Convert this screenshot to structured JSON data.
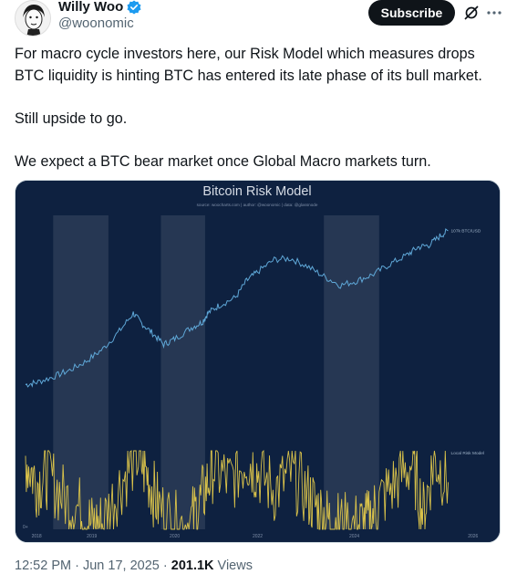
{
  "author": {
    "display_name": "Willy Woo",
    "handle": "@woonomic",
    "verified": true
  },
  "actions": {
    "subscribe_label": "Subscribe",
    "grok_icon": "grok-slash-icon",
    "more_icon": "more-dots-icon"
  },
  "tweet": {
    "paragraphs": [
      "For macro cycle investors here, our Risk Model which measures drops BTC liquidity is hinting BTC has entered its late phase of its bull market.",
      "Still upside to go.",
      "We expect a BTC bear market once Global Macro markets turn."
    ]
  },
  "chart_data": {
    "type": "line",
    "title": "Bitcoin Risk Model",
    "subtitle": "source: woocharts.com | author: @woonomic | data: @glassnode",
    "x_ticks": [
      "2018",
      "2019",
      "2020",
      "2022",
      "2024",
      "2026"
    ],
    "x_range": [
      2017.75,
      2026.25
    ],
    "shaded_periods": [
      [
        2018.3,
        2019.3
      ],
      [
        2020.25,
        2021.05
      ],
      [
        2023.2,
        2024.2
      ]
    ],
    "series": [
      {
        "name": "107k BTC/USD",
        "color": "#5fa8d8",
        "x": [
          2017.8,
          2018.0,
          2018.3,
          2018.6,
          2018.9,
          2019.2,
          2019.5,
          2019.75,
          2019.9,
          2020.1,
          2020.3,
          2020.5,
          2020.8,
          2021.0,
          2021.1,
          2021.3,
          2021.6,
          2021.8,
          2022.0,
          2022.3,
          2022.6,
          2022.9,
          2023.2,
          2023.5,
          2023.8,
          2024.1,
          2024.4,
          2024.7,
          2024.9,
          2025.1,
          2025.3,
          2025.45
        ],
        "y": [
          0.2,
          0.22,
          0.27,
          0.33,
          0.41,
          0.52,
          0.68,
          0.84,
          0.75,
          0.66,
          0.56,
          0.61,
          0.71,
          0.76,
          0.84,
          0.91,
          0.98,
          1.13,
          1.21,
          1.32,
          1.33,
          1.26,
          1.17,
          1.09,
          1.13,
          1.19,
          1.28,
          1.36,
          1.43,
          1.45,
          1.53,
          1.58
        ]
      },
      {
        "name": "Local Risk Model",
        "color": "#d9c24a",
        "x": [
          2017.8,
          2018.0,
          2018.2,
          2018.5,
          2018.8,
          2019.0,
          2019.2,
          2019.5,
          2019.8,
          2020.0,
          2020.2,
          2020.5,
          2020.8,
          2021.0,
          2021.2,
          2021.5,
          2021.8,
          2022.0,
          2022.3,
          2022.6,
          2022.9,
          2023.1,
          2023.3,
          2023.5,
          2023.8,
          2024.0,
          2024.2,
          2024.5,
          2024.8,
          2025.0,
          2025.2,
          2025.45
        ],
        "y": [
          0.9,
          0.6,
          0.7,
          0.4,
          0.25,
          0.05,
          0.08,
          0.55,
          0.95,
          0.7,
          0.3,
          0.05,
          0.1,
          0.4,
          0.8,
          0.6,
          0.9,
          0.75,
          0.5,
          0.7,
          0.45,
          0.25,
          0.1,
          0.05,
          0.05,
          0.08,
          0.35,
          0.6,
          0.85,
          0.2,
          0.9,
          0.6
        ]
      }
    ],
    "legend_labels": [
      "107k BTC/USD",
      "Local Risk Model"
    ],
    "y_axis_label_lower": "0+"
  },
  "footer": {
    "time": "12:52 PM",
    "separator": "·",
    "date": "Jun 17, 2025",
    "views_count": "201.1K",
    "views_label": "Views"
  }
}
